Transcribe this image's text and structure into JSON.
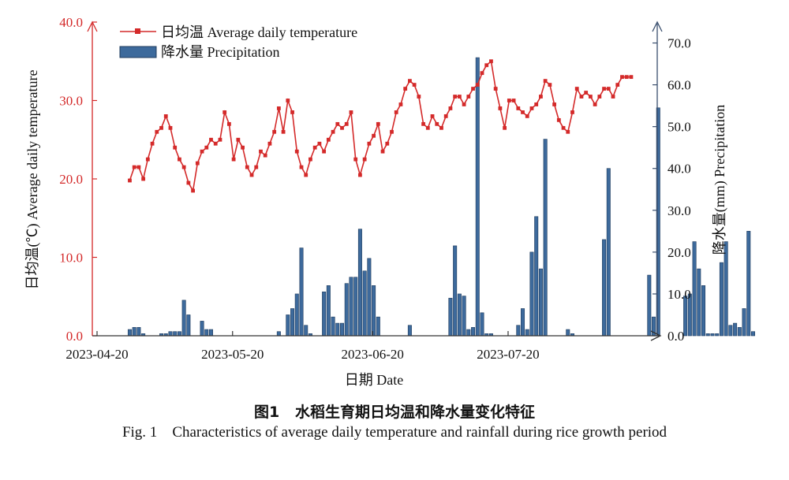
{
  "chart_data": {
    "type": "bar+line",
    "xlabel": "日期 Date",
    "x_ticks": [
      "2023-04-20",
      "2023-05-20",
      "2023-06-20",
      "2023-07-20"
    ],
    "x_start": "2023-04-20",
    "y_left": {
      "label": "日均温(℃) Average daily temperature",
      "lim": [
        0,
        40
      ],
      "ticks": [
        "0.0",
        "10.0",
        "20.0",
        "30.0",
        "40.0"
      ],
      "color": "#d42a2a"
    },
    "y_right": {
      "label": "降水量(mm) Precipitation",
      "lim": [
        0,
        75
      ],
      "ticks": [
        "0.0",
        "10.0",
        "20.0",
        "30.0",
        "40.0",
        "50.0",
        "60.0",
        "70.0"
      ],
      "color": "#3a4f6e"
    },
    "legend": {
      "position": "top-left",
      "items": [
        {
          "label": "日均温 Average daily temperature",
          "kind": "line"
        },
        {
          "label": "降水量 Precipitation",
          "kind": "bar"
        }
      ]
    },
    "series": [
      {
        "name": "日均温 Average daily temperature",
        "axis": "left",
        "color": "#d42a2a",
        "start_date": "2023-04-22",
        "values": [
          19.8,
          21.5,
          21.5,
          20.0,
          22.5,
          24.5,
          26.0,
          26.5,
          28.0,
          26.5,
          24.0,
          22.5,
          21.5,
          19.5,
          18.5,
          22.0,
          23.5,
          24.0,
          25.0,
          24.5,
          25.0,
          28.5,
          27.0,
          22.5,
          25.0,
          24.0,
          21.5,
          20.5,
          21.5,
          23.5,
          23.0,
          24.5,
          26.0,
          29.0,
          26.0,
          30.0,
          28.5,
          23.5,
          21.5,
          20.5,
          22.5,
          24.0,
          24.5,
          23.5,
          25.0,
          26.0,
          27.0,
          26.5,
          27.0,
          28.5,
          22.5,
          20.5,
          22.5,
          24.5,
          25.5,
          27.0,
          23.5,
          24.5,
          26.0,
          28.5,
          29.5,
          31.5,
          32.5,
          32.0,
          30.5,
          27.0,
          26.5,
          28.0,
          27.0,
          26.5,
          28.0,
          29.0,
          30.5,
          30.5,
          29.5,
          30.5,
          31.5,
          32.0,
          33.5,
          34.5,
          35.0,
          31.5,
          29.0,
          26.5,
          30.0,
          30.0,
          29.0,
          28.5,
          28.0,
          29.0,
          29.5,
          30.5,
          32.5,
          32.0,
          29.5,
          27.5,
          26.5,
          26.0,
          28.5,
          31.5,
          30.5,
          31.0,
          30.5,
          29.5,
          30.5,
          31.5,
          31.5,
          30.5,
          32.0,
          33.0,
          33.0,
          33.0
        ]
      },
      {
        "name": "降水量 Precipitation",
        "axis": "right",
        "color": "#3d6a9c",
        "start_date": "2023-04-20",
        "values": [
          0,
          0,
          1.5,
          2,
          2,
          0.5,
          0,
          0,
          0,
          0.5,
          0.5,
          1,
          1,
          1,
          8.5,
          5,
          0,
          0,
          3.5,
          1.5,
          1.5,
          0,
          0,
          0,
          0,
          0,
          0,
          0,
          0,
          0,
          0,
          0,
          0,
          0,
          0,
          1,
          0,
          5,
          6.5,
          10,
          21,
          2.5,
          0.5,
          0,
          0,
          10.5,
          12,
          4.5,
          3,
          3,
          12.5,
          14,
          14,
          25.5,
          15.5,
          18.5,
          12,
          4.5,
          0,
          0,
          0,
          0,
          0,
          0,
          2.5,
          0,
          0,
          0,
          0,
          0,
          0,
          0,
          0,
          9,
          21.5,
          10,
          9.5,
          1.5,
          2,
          66.5,
          5.5,
          0.5,
          0.5,
          0,
          0,
          0,
          0,
          0,
          2.5,
          6.5,
          1.5,
          20,
          28.5,
          16,
          47,
          0,
          0,
          0,
          0,
          1.5,
          0.5,
          0,
          0,
          0,
          0,
          0,
          0,
          23,
          40,
          0,
          0,
          0,
          0,
          0,
          0,
          0,
          0,
          14.5,
          4.5,
          54.5,
          0,
          0,
          0,
          0,
          0,
          9.5,
          10,
          22.5,
          16,
          12,
          0.5,
          0.5,
          0.5,
          17.5,
          22.5,
          2.5,
          3,
          2,
          6.5,
          25,
          1
        ]
      }
    ]
  },
  "caption": {
    "cn_fig": "图1",
    "cn_text": "水稻生育期日均温和降水量变化特征",
    "en_fig": "Fig. 1",
    "en_text": "Characteristics of average daily temperature and rainfall during rice growth period"
  }
}
